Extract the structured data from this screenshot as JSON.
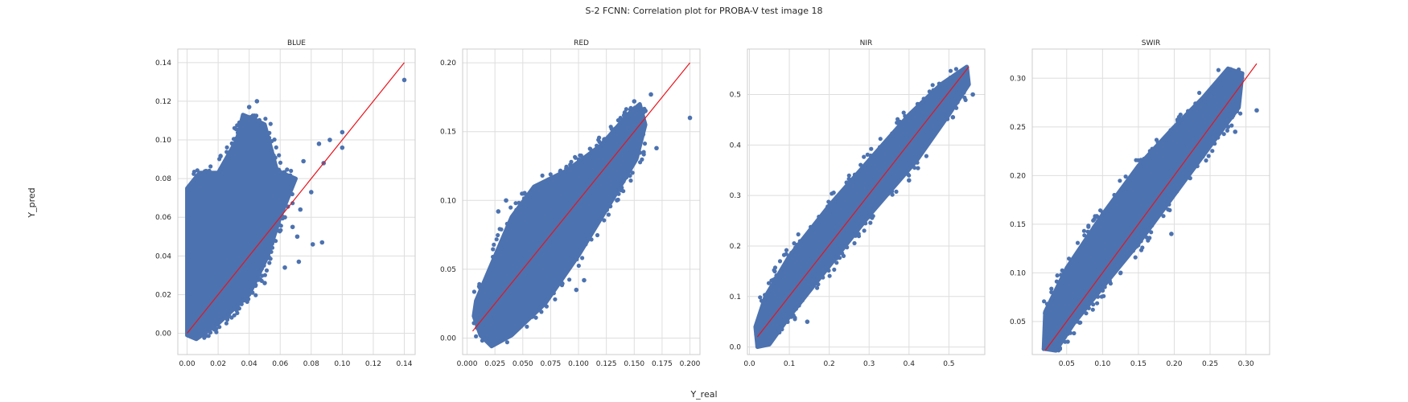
{
  "title": "S-2 FCNN: Correlation plot for PROBA-V test image 18",
  "xlabel": "Y_real",
  "ylabel": "Y_pred",
  "colors": {
    "points": "#4c72b0",
    "identity_line": "#e8141c",
    "grid": "#dedede",
    "frame": "#cccccc",
    "background": "#ffffff"
  },
  "chart_data": [
    {
      "type": "scatter",
      "title": "BLUE",
      "xlim": [
        -0.006,
        0.147
      ],
      "ylim": [
        -0.011,
        0.147
      ],
      "xticks": [
        0.0,
        0.02,
        0.04,
        0.06,
        0.08,
        0.1,
        0.12,
        0.14
      ],
      "xtick_labels": [
        "0.00",
        "0.02",
        "0.04",
        "0.06",
        "0.08",
        "0.10",
        "0.12",
        "0.14"
      ],
      "yticks": [
        0.0,
        0.02,
        0.04,
        0.06,
        0.08,
        0.1,
        0.12,
        0.14
      ],
      "ytick_labels": [
        "0.00",
        "0.02",
        "0.04",
        "0.06",
        "0.08",
        "0.10",
        "0.12",
        "0.14"
      ],
      "identity_line": [
        [
          0.0,
          0.0
        ],
        [
          0.14,
          0.14
        ]
      ],
      "cloud": [
        [
          0.0,
          -0.001
        ],
        [
          0.0,
          0.075
        ],
        [
          0.008,
          0.083
        ],
        [
          0.02,
          0.083
        ],
        [
          0.032,
          0.1
        ],
        [
          0.036,
          0.113
        ],
        [
          0.045,
          0.11
        ],
        [
          0.05,
          0.108
        ],
        [
          0.058,
          0.084
        ],
        [
          0.07,
          0.08
        ],
        [
          0.06,
          0.06
        ],
        [
          0.052,
          0.04
        ],
        [
          0.04,
          0.02
        ],
        [
          0.02,
          0.005
        ],
        [
          0.006,
          -0.003
        ]
      ],
      "outliers": [
        [
          0.14,
          0.131
        ],
        [
          0.1,
          0.104
        ],
        [
          0.092,
          0.1
        ],
        [
          0.085,
          0.098
        ],
        [
          0.088,
          0.088
        ],
        [
          0.075,
          0.089
        ],
        [
          0.08,
          0.073
        ],
        [
          0.073,
          0.064
        ],
        [
          0.063,
          0.06
        ],
        [
          0.071,
          0.05
        ],
        [
          0.081,
          0.046
        ],
        [
          0.087,
          0.047
        ],
        [
          0.072,
          0.037
        ],
        [
          0.063,
          0.034
        ],
        [
          0.05,
          0.026
        ],
        [
          0.045,
          0.12
        ],
        [
          0.04,
          0.117
        ],
        [
          0.024,
          0.009
        ],
        [
          0.068,
          0.055
        ],
        [
          0.1,
          0.096
        ]
      ]
    },
    {
      "type": "scatter",
      "title": "RED",
      "xlim": [
        -0.004,
        0.209
      ],
      "ylim": [
        -0.012,
        0.21
      ],
      "xticks": [
        0.0,
        0.025,
        0.05,
        0.075,
        0.1,
        0.125,
        0.15,
        0.175,
        0.2
      ],
      "xtick_labels": [
        "0.000",
        "0.025",
        "0.050",
        "0.075",
        "0.100",
        "0.125",
        "0.150",
        "0.175",
        "0.200"
      ],
      "yticks": [
        0.0,
        0.05,
        0.1,
        0.15,
        0.2
      ],
      "ytick_labels": [
        "0.00",
        "0.05",
        "0.10",
        "0.15",
        "0.20"
      ],
      "identity_line": [
        [
          0.005,
          0.005
        ],
        [
          0.2,
          0.2
        ]
      ],
      "cloud": [
        [
          0.006,
          0.016
        ],
        [
          0.008,
          0.027
        ],
        [
          0.02,
          0.05
        ],
        [
          0.04,
          0.088
        ],
        [
          0.06,
          0.11
        ],
        [
          0.09,
          0.122
        ],
        [
          0.12,
          0.14
        ],
        [
          0.145,
          0.163
        ],
        [
          0.155,
          0.17
        ],
        [
          0.16,
          0.155
        ],
        [
          0.152,
          0.13
        ],
        [
          0.13,
          0.1
        ],
        [
          0.1,
          0.06
        ],
        [
          0.07,
          0.025
        ],
        [
          0.04,
          0.002
        ],
        [
          0.022,
          -0.006
        ],
        [
          0.012,
          0.002
        ]
      ],
      "outliers": [
        [
          0.2,
          0.16
        ],
        [
          0.165,
          0.177
        ],
        [
          0.16,
          0.165
        ],
        [
          0.158,
          0.148
        ],
        [
          0.15,
          0.172
        ],
        [
          0.098,
          0.035
        ],
        [
          0.105,
          0.042
        ],
        [
          0.035,
          0.1
        ],
        [
          0.028,
          0.092
        ],
        [
          0.17,
          0.138
        ]
      ]
    },
    {
      "type": "scatter",
      "title": "NIR",
      "xlim": [
        -0.005,
        0.59
      ],
      "ylim": [
        -0.015,
        0.59
      ],
      "xticks": [
        0.0,
        0.1,
        0.2,
        0.3,
        0.4,
        0.5
      ],
      "xtick_labels": [
        "0.0",
        "0.1",
        "0.2",
        "0.3",
        "0.4",
        "0.5"
      ],
      "yticks": [
        0.0,
        0.1,
        0.2,
        0.3,
        0.4,
        0.5
      ],
      "ytick_labels": [
        "0.0",
        "0.1",
        "0.2",
        "0.3",
        "0.4",
        "0.5"
      ],
      "identity_line": [
        [
          0.02,
          0.02
        ],
        [
          0.55,
          0.555
        ]
      ],
      "cloud": [
        [
          0.02,
          0.0
        ],
        [
          0.015,
          0.04
        ],
        [
          0.04,
          0.1
        ],
        [
          0.1,
          0.18
        ],
        [
          0.2,
          0.28
        ],
        [
          0.3,
          0.37
        ],
        [
          0.4,
          0.46
        ],
        [
          0.48,
          0.52
        ],
        [
          0.545,
          0.555
        ],
        [
          0.55,
          0.52
        ],
        [
          0.5,
          0.46
        ],
        [
          0.42,
          0.37
        ],
        [
          0.3,
          0.26
        ],
        [
          0.2,
          0.16
        ],
        [
          0.1,
          0.06
        ],
        [
          0.05,
          0.005
        ]
      ],
      "outliers": [
        [
          0.56,
          0.5
        ],
        [
          0.51,
          0.455
        ],
        [
          0.3,
          0.34
        ],
        [
          0.25,
          0.31
        ],
        [
          0.4,
          0.33
        ],
        [
          0.145,
          0.05
        ]
      ]
    },
    {
      "type": "scatter",
      "title": "SWIR",
      "xlim": [
        0.002,
        0.333
      ],
      "ylim": [
        0.016,
        0.33
      ],
      "xticks": [
        0.05,
        0.1,
        0.15,
        0.2,
        0.25,
        0.3
      ],
      "xtick_labels": [
        "0.05",
        "0.10",
        "0.15",
        "0.20",
        "0.25",
        "0.30"
      ],
      "yticks": [
        0.05,
        0.1,
        0.15,
        0.2,
        0.25,
        0.3
      ],
      "ytick_labels": [
        "0.05",
        "0.10",
        "0.15",
        "0.20",
        "0.25",
        "0.30"
      ],
      "identity_line": [
        [
          0.02,
          0.02
        ],
        [
          0.315,
          0.315
        ]
      ],
      "cloud": [
        [
          0.018,
          0.022
        ],
        [
          0.02,
          0.06
        ],
        [
          0.05,
          0.105
        ],
        [
          0.1,
          0.16
        ],
        [
          0.15,
          0.21
        ],
        [
          0.2,
          0.25
        ],
        [
          0.24,
          0.28
        ],
        [
          0.275,
          0.31
        ],
        [
          0.295,
          0.305
        ],
        [
          0.29,
          0.27
        ],
        [
          0.25,
          0.23
        ],
        [
          0.2,
          0.18
        ],
        [
          0.15,
          0.13
        ],
        [
          0.1,
          0.085
        ],
        [
          0.06,
          0.048
        ],
        [
          0.035,
          0.02
        ]
      ],
      "outliers": [
        [
          0.315,
          0.267
        ],
        [
          0.285,
          0.245
        ],
        [
          0.275,
          0.25
        ],
        [
          0.196,
          0.14
        ],
        [
          0.075,
          0.11
        ],
        [
          0.088,
          0.098
        ],
        [
          0.02,
          0.032
        ]
      ]
    }
  ]
}
